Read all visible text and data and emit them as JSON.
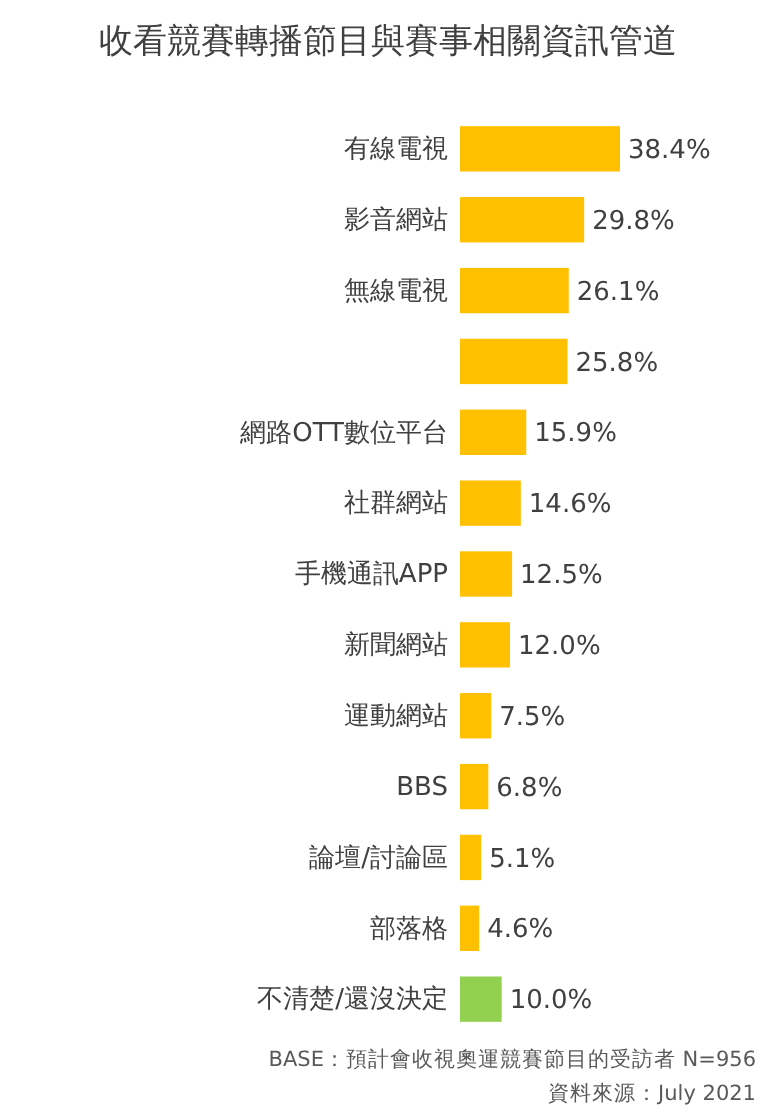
{
  "chart_data": {
    "type": "bar",
    "orientation": "horizontal",
    "title": "收看競賽轉播節目與賽事相關資訊管道",
    "categories": [
      "有線電視",
      "影音網站",
      "無線電視",
      null,
      "網路OTT數位平台",
      "社群網站",
      "手機通訊APP",
      "新聞網站",
      "運動網站",
      "BBS",
      "論壇/討論區",
      "部落格",
      "不清楚/還沒決定"
    ],
    "values": [
      38.4,
      29.8,
      26.1,
      25.8,
      15.9,
      14.6,
      12.5,
      12.0,
      7.5,
      6.8,
      5.1,
      4.6,
      10.0
    ],
    "colors": [
      "#ffc000",
      "#ffc000",
      "#ffc000",
      "#ffc000",
      "#ffc000",
      "#ffc000",
      "#ffc000",
      "#ffc000",
      "#ffc000",
      "#ffc000",
      "#ffc000",
      "#ffc000",
      "#92d050"
    ],
    "value_labels": [
      "38.4%",
      "29.8%",
      "26.1%",
      "25.8%",
      "15.9%",
      "14.6%",
      "12.5%",
      "12.0%",
      "7.5%",
      "6.8%",
      "5.1%",
      "4.6%",
      "10.0%"
    ],
    "annotations": [
      "BASE：預計會收視奧運競賽節目的受訪者 N=956",
      "資料來源：July 2021"
    ]
  }
}
